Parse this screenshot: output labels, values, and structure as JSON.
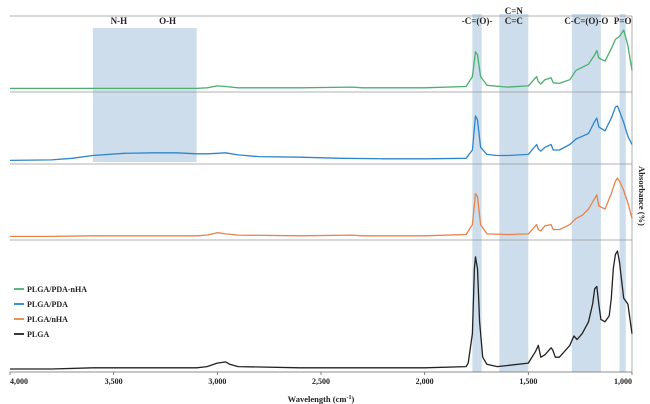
{
  "chart_data": {
    "type": "line",
    "title": "",
    "xlabel": "Wavelength (cm",
    "xlabel_sup": "-1",
    "xlabel_tail": ")",
    "ylabel": "Absorbance (%)",
    "xlim": [
      4000,
      1000
    ],
    "x_reversed": true,
    "x_ticks": [
      4000,
      3500,
      3000,
      2500,
      2000,
      1500,
      1000
    ],
    "x_tick_labels": [
      "4,000",
      "3,500",
      "3,000",
      "2,500",
      "2,000",
      "1,500",
      "1,000"
    ],
    "grid": false,
    "legend_position": "lower-left",
    "bands": [
      {
        "labels": [
          "N-H",
          "O-H"
        ],
        "x_from": 3600,
        "x_to": 3100
      },
      {
        "labels": [
          "-C=(O)-"
        ],
        "x_from": 1770,
        "x_to": 1725
      },
      {
        "labels": [
          "C=N",
          "C=C"
        ],
        "x_from": 1640,
        "x_to": 1500
      },
      {
        "labels": [
          "C-C=(O)-O"
        ],
        "x_from": 1290,
        "x_to": 1150
      },
      {
        "labels": [
          "P=O"
        ],
        "x_from": 1060,
        "x_to": 1030
      }
    ],
    "series": [
      {
        "name": "PLGA/PDA-nHA",
        "color": "#4caf6e",
        "x": [
          4000,
          3800,
          3600,
          3300,
          3100,
          3050,
          3000,
          2960,
          2900,
          2600,
          2350,
          2300,
          2000,
          1800,
          1770,
          1755,
          1745,
          1730,
          1700,
          1600,
          1500,
          1460,
          1452,
          1440,
          1420,
          1390,
          1380,
          1350,
          1300,
          1270,
          1240,
          1210,
          1180,
          1170,
          1160,
          1130,
          1100,
          1080,
          1060,
          1040,
          1020,
          1000
        ],
        "y": [
          0.01,
          0.01,
          0.01,
          0.01,
          0.01,
          0.02,
          0.05,
          0.04,
          0.02,
          0.02,
          0.03,
          0.02,
          0.02,
          0.04,
          0.2,
          0.6,
          0.55,
          0.2,
          0.06,
          0.03,
          0.05,
          0.2,
          0.12,
          0.08,
          0.15,
          0.18,
          0.1,
          0.09,
          0.15,
          0.3,
          0.35,
          0.4,
          0.55,
          0.62,
          0.5,
          0.45,
          0.65,
          0.8,
          0.85,
          0.95,
          0.7,
          0.3
        ]
      },
      {
        "name": "PLGA/PDA",
        "color": "#2e86c8",
        "x": [
          4000,
          3800,
          3700,
          3600,
          3450,
          3300,
          3200,
          3100,
          3050,
          3000,
          2960,
          2900,
          2800,
          2600,
          2400,
          2200,
          2000,
          1800,
          1770,
          1755,
          1745,
          1730,
          1700,
          1650,
          1600,
          1500,
          1460,
          1452,
          1440,
          1420,
          1390,
          1380,
          1350,
          1300,
          1270,
          1240,
          1210,
          1180,
          1170,
          1160,
          1130,
          1100,
          1080,
          1070,
          1060,
          1040,
          1020,
          1000
        ],
        "y": [
          0.01,
          0.02,
          0.05,
          0.1,
          0.14,
          0.15,
          0.15,
          0.13,
          0.13,
          0.14,
          0.15,
          0.11,
          0.08,
          0.07,
          0.05,
          0.04,
          0.04,
          0.05,
          0.2,
          0.82,
          0.75,
          0.25,
          0.12,
          0.1,
          0.1,
          0.12,
          0.3,
          0.22,
          0.18,
          0.25,
          0.3,
          0.2,
          0.2,
          0.3,
          0.4,
          0.45,
          0.5,
          0.72,
          0.78,
          0.62,
          0.55,
          0.78,
          0.98,
          1.0,
          0.9,
          0.7,
          0.45,
          0.3
        ]
      },
      {
        "name": "PLGA/nHA",
        "color": "#e8834a",
        "x": [
          4000,
          3800,
          3600,
          3300,
          3100,
          3050,
          3000,
          2960,
          2900,
          2600,
          2350,
          2300,
          2000,
          1800,
          1770,
          1755,
          1745,
          1730,
          1700,
          1600,
          1500,
          1460,
          1452,
          1440,
          1420,
          1390,
          1380,
          1350,
          1300,
          1270,
          1240,
          1210,
          1180,
          1170,
          1160,
          1130,
          1100,
          1080,
          1070,
          1060,
          1040,
          1020,
          1000
        ],
        "y": [
          0.01,
          0.01,
          0.02,
          0.02,
          0.02,
          0.03,
          0.07,
          0.05,
          0.03,
          0.02,
          0.03,
          0.02,
          0.02,
          0.04,
          0.2,
          0.7,
          0.65,
          0.2,
          0.05,
          0.04,
          0.05,
          0.2,
          0.12,
          0.1,
          0.18,
          0.2,
          0.12,
          0.12,
          0.2,
          0.3,
          0.35,
          0.45,
          0.62,
          0.68,
          0.5,
          0.45,
          0.7,
          0.9,
          0.95,
          0.9,
          0.75,
          0.55,
          0.3
        ]
      },
      {
        "name": "PLGA",
        "color": "#222222",
        "x": [
          4000,
          3800,
          3600,
          3300,
          3100,
          3050,
          3000,
          2960,
          2940,
          2900,
          2600,
          2000,
          1800,
          1790,
          1770,
          1760,
          1755,
          1745,
          1735,
          1720,
          1700,
          1650,
          1600,
          1500,
          1465,
          1452,
          1440,
          1420,
          1390,
          1382,
          1370,
          1350,
          1300,
          1280,
          1265,
          1240,
          1210,
          1190,
          1180,
          1170,
          1160,
          1150,
          1130,
          1110,
          1100,
          1090,
          1080,
          1070,
          1060,
          1050,
          1040,
          1020,
          1000
        ],
        "y": [
          0.0,
          0.0,
          0.01,
          0.01,
          0.01,
          0.02,
          0.05,
          0.06,
          0.04,
          0.02,
          0.01,
          0.01,
          0.02,
          0.05,
          0.3,
          0.85,
          0.95,
          0.85,
          0.4,
          0.1,
          0.04,
          0.02,
          0.03,
          0.05,
          0.15,
          0.2,
          0.1,
          0.12,
          0.18,
          0.16,
          0.1,
          0.1,
          0.2,
          0.28,
          0.25,
          0.3,
          0.4,
          0.55,
          0.68,
          0.7,
          0.55,
          0.42,
          0.4,
          0.45,
          0.6,
          0.85,
          0.97,
          1.0,
          0.9,
          0.75,
          0.6,
          0.55,
          0.3
        ]
      }
    ]
  }
}
